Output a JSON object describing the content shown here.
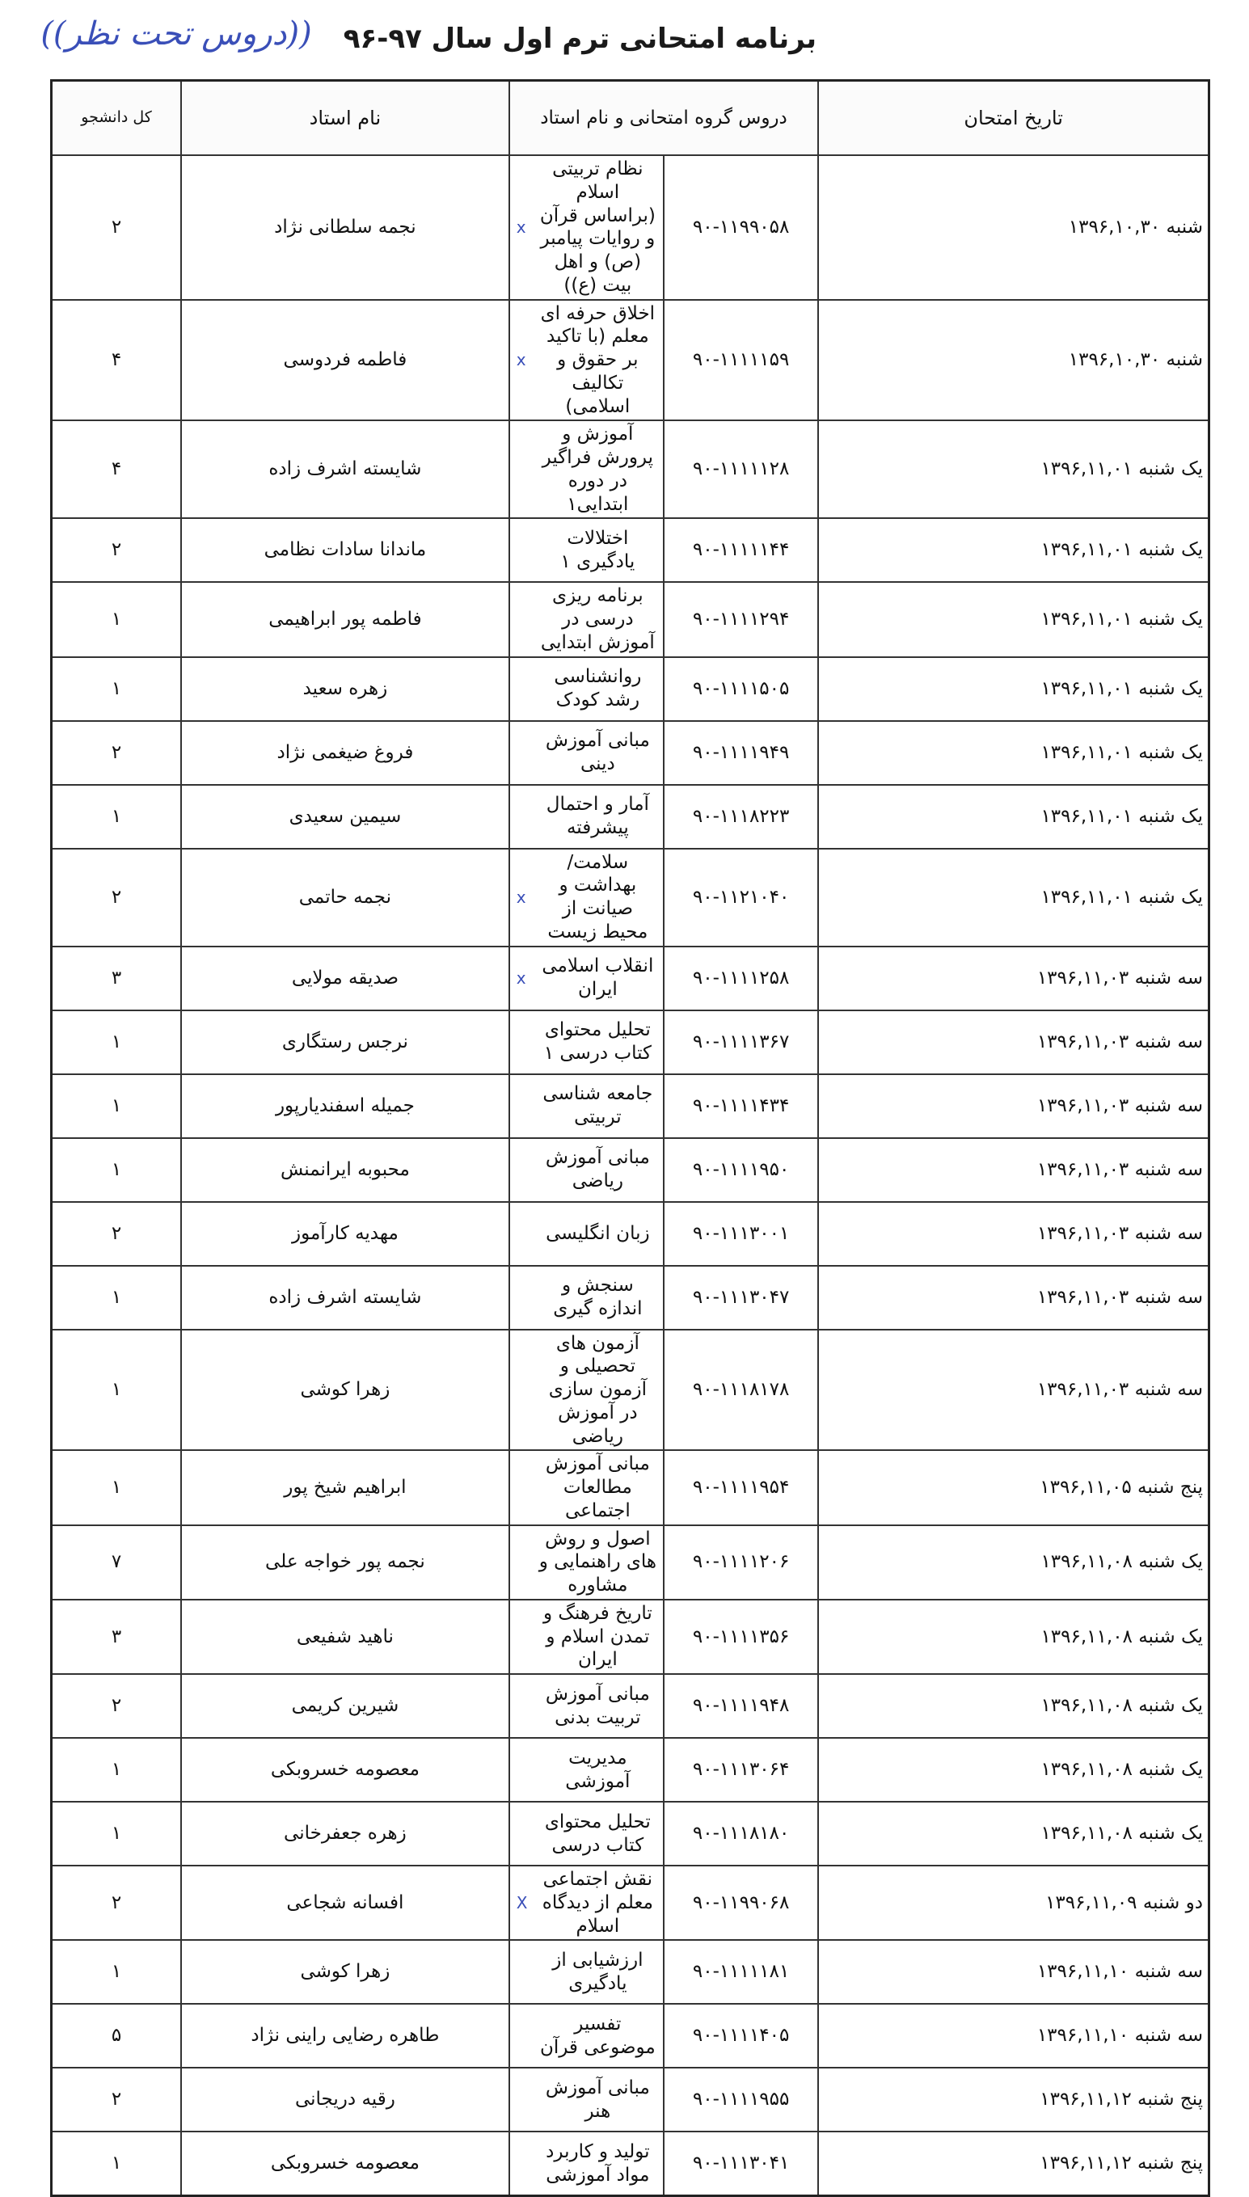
{
  "title": "برنامه امتحانی ترم اول سال ۹۷-۹۶",
  "handwritten_note": "((دروس تحت نظر))",
  "headers": {
    "date": "تاریخ امتحان",
    "course": "دروس گروه امتحانی و نام استاد",
    "teacher": "نام استاد",
    "count": "کل دانشجو"
  },
  "rows": [
    {
      "date": "شنبه ۱۳۹۶,۱۰,۳۰",
      "code": "۹۰-۱۱۹۹۰۵۸",
      "course": "نظام تربیتی اسلام (براساس قرآن و روایات پیامبر (ص) و اهل بیت (ع))",
      "teacher": "نجمه سلطانی نژاد",
      "count": "۲",
      "mark": "x"
    },
    {
      "date": "شنبه ۱۳۹۶,۱۰,۳۰",
      "code": "۹۰-۱۱۱۱۱۵۹",
      "course": "اخلاق حرفه ای معلم (با تاکید بر حقوق و تکالیف اسلامی)",
      "teacher": "فاطمه فردوسی",
      "count": "۴",
      "mark": "x"
    },
    {
      "date": "یک شنبه ۱۳۹۶,۱۱,۰۱",
      "code": "۹۰-۱۱۱۱۱۲۸",
      "course": "آموزش و پرورش فراگیر در دوره ابتدایی۱",
      "teacher": "شایسته اشرف زاده",
      "count": "۴"
    },
    {
      "date": "یک شنبه ۱۳۹۶,۱۱,۰۱",
      "code": "۹۰-۱۱۱۱۱۴۴",
      "course": "اختلالات یادگیری ۱",
      "teacher": "ماندانا سادات نظامی",
      "count": "۲"
    },
    {
      "date": "یک شنبه ۱۳۹۶,۱۱,۰۱",
      "code": "۹۰-۱۱۱۱۲۹۴",
      "course": "برنامه ریزی درسی در آموزش ابتدایی",
      "teacher": "فاطمه پور ابراهیمی",
      "count": "۱"
    },
    {
      "date": "یک شنبه ۱۳۹۶,۱۱,۰۱",
      "code": "۹۰-۱۱۱۱۵۰۵",
      "course": "روانشناسی رشد کودک",
      "teacher": "زهره سعید",
      "count": "۱"
    },
    {
      "date": "یک شنبه ۱۳۹۶,۱۱,۰۱",
      "code": "۹۰-۱۱۱۱۹۴۹",
      "course": "مبانی آموزش دینی",
      "teacher": "فروغ ضیغمی نژاد",
      "count": "۲"
    },
    {
      "date": "یک شنبه ۱۳۹۶,۱۱,۰۱",
      "code": "۹۰-۱۱۱۸۲۲۳",
      "course": "آمار و احتمال پیشرفته",
      "teacher": "سیمین سعیدی",
      "count": "۱"
    },
    {
      "date": "یک شنبه ۱۳۹۶,۱۱,۰۱",
      "code": "۹۰-۱۱۲۱۰۴۰",
      "course": "سلامت/ بهداشت و صیانت از محیط زیست",
      "teacher": "نجمه حاتمی",
      "count": "۲",
      "mark": "x"
    },
    {
      "date": "سه شنبه ۱۳۹۶,۱۱,۰۳",
      "code": "۹۰-۱۱۱۱۲۵۸",
      "course": "انقلاب اسلامی ایران",
      "teacher": "صدیقه مولایی",
      "count": "۳",
      "mark": "x"
    },
    {
      "date": "سه شنبه ۱۳۹۶,۱۱,۰۳",
      "code": "۹۰-۱۱۱۱۳۶۷",
      "course": "تحلیل محتوای کتاب درسی ۱",
      "teacher": "نرجس رستگاری",
      "count": "۱"
    },
    {
      "date": "سه شنبه ۱۳۹۶,۱۱,۰۳",
      "code": "۹۰-۱۱۱۱۴۳۴",
      "course": "جامعه شناسی تربیتی",
      "teacher": "جمیله اسفندیارپور",
      "count": "۱"
    },
    {
      "date": "سه شنبه ۱۳۹۶,۱۱,۰۳",
      "code": "۹۰-۱۱۱۱۹۵۰",
      "course": "مبانی آموزش ریاضی",
      "teacher": "محبوبه ایرانمنش",
      "count": "۱"
    },
    {
      "date": "سه شنبه ۱۳۹۶,۱۱,۰۳",
      "code": "۹۰-۱۱۱۳۰۰۱",
      "course": "زبان انگلیسی",
      "teacher": "مهدیه کارآموز",
      "count": "۲"
    },
    {
      "date": "سه شنبه ۱۳۹۶,۱۱,۰۳",
      "code": "۹۰-۱۱۱۳۰۴۷",
      "course": "سنجش و اندازه گیری",
      "teacher": "شایسته اشرف زاده",
      "count": "۱"
    },
    {
      "date": "سه شنبه ۱۳۹۶,۱۱,۰۳",
      "code": "۹۰-۱۱۱۸۱۷۸",
      "course": "آزمون های تحصیلی و آزمون سازی در آموزش ریاضی",
      "teacher": "زهرا کوشی",
      "count": "۱"
    },
    {
      "date": "پنج شنبه ۱۳۹۶,۱۱,۰۵",
      "code": "۹۰-۱۱۱۱۹۵۴",
      "course": "مبانی آموزش مطالعات اجتماعی",
      "teacher": "ابراهیم شیخ پور",
      "count": "۱"
    },
    {
      "date": "یک شنبه ۱۳۹۶,۱۱,۰۸",
      "code": "۹۰-۱۱۱۱۲۰۶",
      "course": "اصول و روش های راهنمایی و مشاوره",
      "teacher": "نجمه پور خواجه علی",
      "count": "۷"
    },
    {
      "date": "یک شنبه ۱۳۹۶,۱۱,۰۸",
      "code": "۹۰-۱۱۱۱۳۵۶",
      "course": "تاریخ فرهنگ و تمدن اسلام و ایران",
      "teacher": "ناهید شفیعی",
      "count": "۳"
    },
    {
      "date": "یک شنبه ۱۳۹۶,۱۱,۰۸",
      "code": "۹۰-۱۱۱۱۹۴۸",
      "course": "مبانی آموزش تربیت بدنی",
      "teacher": "شیرین کریمی",
      "count": "۲"
    },
    {
      "date": "یک شنبه ۱۳۹۶,۱۱,۰۸",
      "code": "۹۰-۱۱۱۳۰۶۴",
      "course": "مدیریت آموزشی",
      "teacher": "معصومه خسروبکی",
      "count": "۱"
    },
    {
      "date": "یک شنبه ۱۳۹۶,۱۱,۰۸",
      "code": "۹۰-۱۱۱۸۱۸۰",
      "course": "تحلیل محتوای کتاب درسی",
      "teacher": "زهره جعفرخانی",
      "count": "۱"
    },
    {
      "date": "دو شنبه ۱۳۹۶,۱۱,۰۹",
      "code": "۹۰-۱۱۹۹۰۶۸",
      "course": "نقش اجتماعی معلم از دیدگاه اسلام",
      "teacher": "افسانه شجاعی",
      "count": "۲",
      "mark": "X"
    },
    {
      "date": "سه شنبه ۱۳۹۶,۱۱,۱۰",
      "code": "۹۰-۱۱۱۱۱۸۱",
      "course": "ارزشیابی از یادگیری",
      "teacher": "زهرا کوشی",
      "count": "۱"
    },
    {
      "date": "سه شنبه ۱۳۹۶,۱۱,۱۰",
      "code": "۹۰-۱۱۱۱۴۰۵",
      "course": "تفسیر موضوعی قرآن",
      "teacher": "طاهره رضایی راینی نژاد",
      "count": "۵"
    },
    {
      "date": "پنج شنبه ۱۳۹۶,۱۱,۱۲",
      "code": "۹۰-۱۱۱۱۹۵۵",
      "course": "مبانی آموزش هنر",
      "teacher": "رقیه دریجانی",
      "count": "۲"
    },
    {
      "date": "پنج شنبه ۱۳۹۶,۱۱,۱۲",
      "code": "۹۰-۱۱۱۳۰۴۱",
      "course": "تولید و کاربرد مواد آموزشی",
      "teacher": "معصومه خسروبکی",
      "count": "۱"
    }
  ]
}
